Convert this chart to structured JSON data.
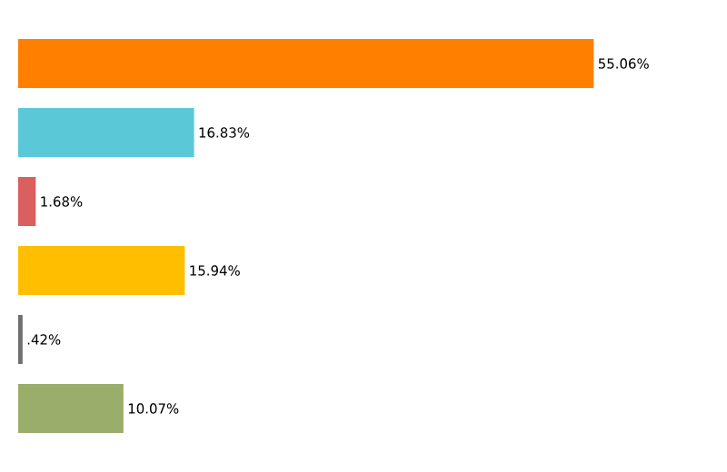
{
  "chart_data": {
    "type": "bar",
    "orientation": "horizontal",
    "categories": [
      null,
      null,
      null,
      null,
      null,
      null
    ],
    "values": [
      55.06,
      16.83,
      1.68,
      15.94,
      0.42,
      10.07
    ],
    "colors": [
      "#ff7f00",
      "#5bc8d8",
      "#d9605f",
      "#ffbf00",
      "#6f6f6f",
      "#9aad6a"
    ],
    "value_labels": [
      "55.06%",
      "16.83%",
      "1.68%",
      "15.94%",
      ".42%",
      "10.07%"
    ]
  }
}
